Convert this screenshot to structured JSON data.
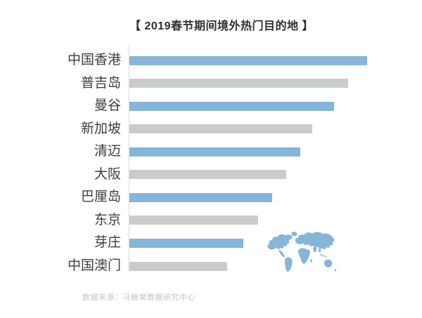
{
  "footer": {
    "source": "数据来源：马蜂窝数据研究中心"
  },
  "chart_data": {
    "type": "bar",
    "orientation": "horizontal",
    "title": "【 2019春节期间境外热门目的地 】",
    "categories": [
      "中国香港",
      "普吉岛",
      "曼谷",
      "新加坡",
      "清迈",
      "大阪",
      "巴厘岛",
      "东京",
      "芽庄",
      "中国澳门"
    ],
    "values": [
      100,
      92,
      86,
      77,
      72,
      66,
      60,
      54,
      48,
      41
    ],
    "value_note": "no numeric axis shown; values are relative bar lengths as % of longest bar",
    "xlabel": "",
    "ylabel": "",
    "legend": "none",
    "grid": "off",
    "bar_colors_alternating": [
      "#85b5d8",
      "#cacbcc"
    ],
    "axis_line_color": "#d9d9d9",
    "title_color": "#2f2f2f",
    "label_color": "#3c3c3c",
    "source_color": "#c3c3c3",
    "icon": "world-map-icon",
    "icon_color": "#85b5d8"
  }
}
